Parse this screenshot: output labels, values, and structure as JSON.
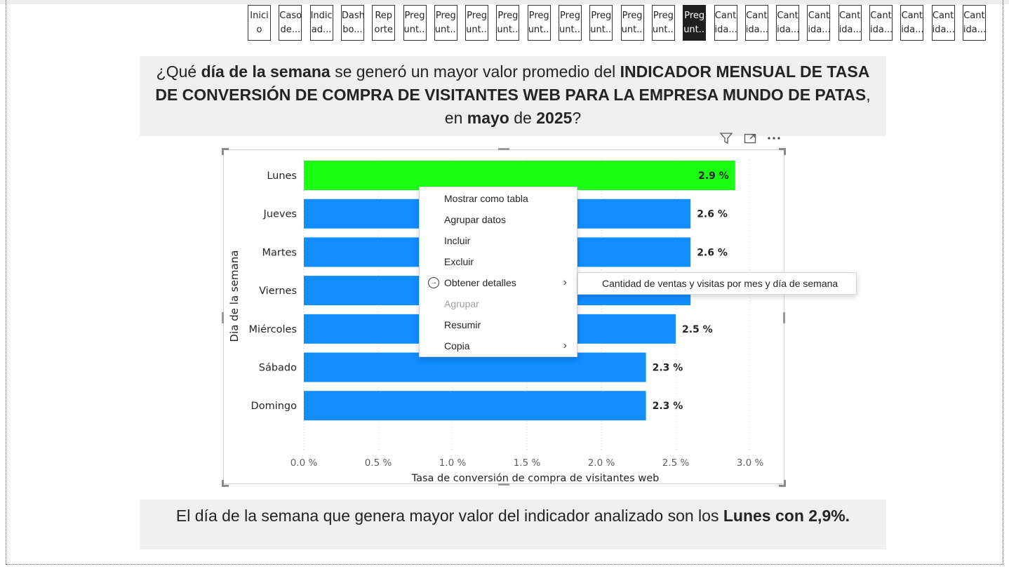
{
  "nav": {
    "buttons": [
      {
        "line1": "Inici",
        "line2": "o",
        "active": false
      },
      {
        "line1": "Caso",
        "line2": "de...",
        "active": false
      },
      {
        "line1": "Indic",
        "line2": "ad...",
        "active": false
      },
      {
        "line1": "Dash",
        "line2": "bo...",
        "active": false
      },
      {
        "line1": "Rep",
        "line2": "orte",
        "active": false
      },
      {
        "line1": "Preg",
        "line2": "unt...",
        "active": false
      },
      {
        "line1": "Preg",
        "line2": "unt...",
        "active": false
      },
      {
        "line1": "Preg",
        "line2": "unt...",
        "active": false
      },
      {
        "line1": "Preg",
        "line2": "unt...",
        "active": false
      },
      {
        "line1": "Preg",
        "line2": "unt...",
        "active": false
      },
      {
        "line1": "Preg",
        "line2": "unt...",
        "active": false
      },
      {
        "line1": "Preg",
        "line2": "unt...",
        "active": false
      },
      {
        "line1": "Preg",
        "line2": "unt...",
        "active": false
      },
      {
        "line1": "Preg",
        "line2": "unt...",
        "active": false
      },
      {
        "line1": "Preg",
        "line2": "unt...",
        "active": true
      },
      {
        "line1": "Cant",
        "line2": "ida...",
        "active": false
      },
      {
        "line1": "Cant",
        "line2": "ida...",
        "active": false
      },
      {
        "line1": "Cant",
        "line2": "ida...",
        "active": false
      },
      {
        "line1": "Cant",
        "line2": "ida...",
        "active": false
      },
      {
        "line1": "Cant",
        "line2": "ida...",
        "active": false
      },
      {
        "line1": "Cant",
        "line2": "ida...",
        "active": false
      },
      {
        "line1": "Cant",
        "line2": "ida...",
        "active": false
      },
      {
        "line1": "Cant",
        "line2": "ida...",
        "active": false
      },
      {
        "line1": "Cant",
        "line2": "ida...",
        "active": false
      }
    ]
  },
  "question": {
    "p1": "¿Qué ",
    "b1": "día de la semana",
    "p2": " se generó un mayor valor promedio del ",
    "b2": "INDICADOR MENSUAL DE TASA DE CONVERSIÓN DE COMPRA DE VISITANTES WEB PARA LA EMPRESA MUNDO DE PATAS",
    "p3": ", en ",
    "b3": "mayo",
    "p4": " de ",
    "b4": "2025",
    "p5": "?"
  },
  "visual_header": {
    "filter_icon": "filter-icon",
    "focus_icon": "focus-mode-icon",
    "more_icon": "more-options-icon"
  },
  "chart_data": {
    "type": "bar",
    "orientation": "horizontal",
    "categories": [
      "Lunes",
      "Jueves",
      "Martes",
      "Viernes",
      "Miércoles",
      "Sábado",
      "Domingo"
    ],
    "values": [
      2.9,
      2.6,
      2.6,
      2.6,
      2.5,
      2.3,
      2.3
    ],
    "data_labels": [
      "2.9 %",
      "2.6 %",
      "2.6 %",
      "2.6 %",
      "2.5 %",
      "2.3 %",
      "2.3 %"
    ],
    "xticks": [
      "0.0 %",
      "0.5 %",
      "1.0 %",
      "1.5 %",
      "2.0 %",
      "2.5 %",
      "3.0 %"
    ],
    "xlabel": "Tasa de conversión de compra de visitantes web",
    "ylabel": "Dia de la semana",
    "xlim": [
      0,
      3.0
    ],
    "grid": "vertical dotted",
    "colors": {
      "highlight": "#1aff12",
      "default": "#118dff"
    }
  },
  "context_menu": {
    "items": [
      {
        "label": "Mostrar como tabla",
        "disabled": false,
        "submenu": false,
        "icon": ""
      },
      {
        "label": "Agrupar datos",
        "disabled": false,
        "submenu": false,
        "icon": ""
      },
      {
        "label": "Incluir",
        "disabled": false,
        "submenu": false,
        "icon": ""
      },
      {
        "label": "Excluir",
        "disabled": false,
        "submenu": false,
        "icon": ""
      },
      {
        "label": "Obtener detalles",
        "disabled": false,
        "submenu": true,
        "icon": "drillthrough-icon"
      },
      {
        "label": "Agrupar",
        "disabled": true,
        "submenu": false,
        "icon": ""
      },
      {
        "label": "Resumir",
        "disabled": false,
        "submenu": false,
        "icon": ""
      },
      {
        "label": "Copia",
        "disabled": false,
        "submenu": true,
        "icon": ""
      }
    ],
    "submenu_item": "Cantidad de ventas y visitas por mes y día de semana"
  },
  "answer": {
    "text": "El día de la semana que genera mayor valor del indicador analizado son los ",
    "bold": "Lunes con 2,9%."
  }
}
